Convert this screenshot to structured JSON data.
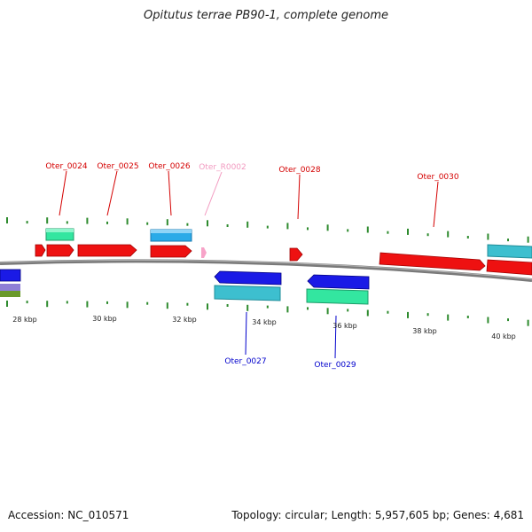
{
  "title": "Opitutus terrae PB90-1, complete genome",
  "footer": {
    "accession": "Accession: NC_010571",
    "summary": "Topology: circular; Length: 5,957,605 bp; Genes: 4,681"
  },
  "colors": {
    "forward_cds": "#ee1111",
    "reverse_cds": "#1a1ae6",
    "cog_cyan": "#3dbfcf",
    "cog_green": "#33e6a0",
    "cog_sky": "#2aaae8",
    "rna": "#f7a3c8",
    "tick": "#2e8b2e",
    "backbone": "#808080",
    "label_forward": "#d40000",
    "label_reverse": "#0000cc",
    "label_rna": "#f29ac0"
  },
  "scale_labels": [
    "28 kbp",
    "30 kbp",
    "32 kbp",
    "34 kbp",
    "36 kbp",
    "38 kbp",
    "40 kbp"
  ],
  "gene_labels": {
    "forward": [
      "Oter_0024",
      "Oter_0025",
      "Oter_0026",
      "Oter_0028",
      "Oter_0030"
    ],
    "rna": [
      "Oter_R0002"
    ],
    "reverse": [
      "Oter_0027",
      "Oter_0029"
    ]
  }
}
